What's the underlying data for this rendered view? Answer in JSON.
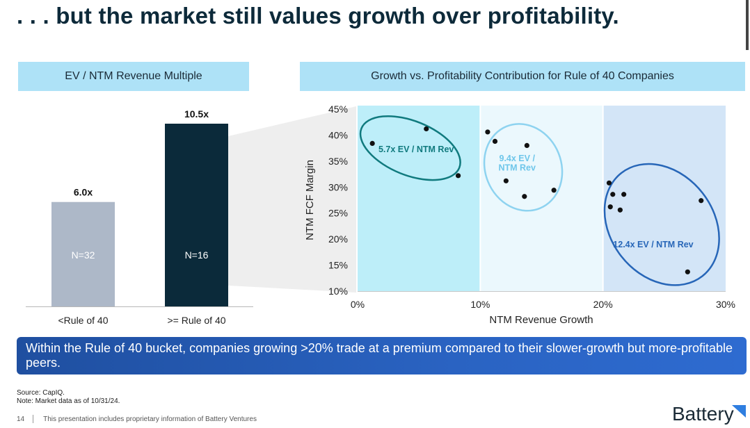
{
  "slide": {
    "title": ". . . but the market still values growth over profitability.",
    "page_number": "14",
    "footer_text": "This presentation includes proprietary information of Battery Ventures",
    "source_line1": "Source: CapIQ.",
    "source_line2": "Note: Market data as of 10/31/24.",
    "logo_text": "Battery",
    "callout": "Within the Rule of 40 bucket, companies growing >20% trade at a premium compared to their slower-growth but more-profitable peers.",
    "colors": {
      "dark_navy": "#0b2a3a",
      "gray_bar": "#adb8c8",
      "header_blue": "#aee2f7",
      "callout_blue": "#2458b0",
      "accent_logo": "#2f7ee0"
    }
  },
  "chart_data": [
    {
      "type": "bar",
      "title": "EV / NTM Revenue Multiple",
      "categories": [
        "<Rule of 40",
        ">= Rule of 40"
      ],
      "values": [
        6.0,
        10.5
      ],
      "value_labels": [
        "6.0x",
        "10.5x"
      ],
      "inner_labels": [
        "N=32",
        "N=16"
      ],
      "bar_colors": [
        "#adb8c8",
        "#0b2a3a"
      ],
      "ylim": [
        0,
        10.5
      ]
    },
    {
      "type": "scatter",
      "title": "Growth vs. Profitability Contribution for Rule of 40 Companies",
      "xlabel": "NTM Revenue Growth",
      "ylabel": "NTM FCF Margin",
      "xlim": [
        0,
        30
      ],
      "ylim": [
        10,
        45
      ],
      "x_ticks": [
        "0%",
        "10%",
        "20%",
        "30%"
      ],
      "y_ticks": [
        "10%",
        "15%",
        "20%",
        "25%",
        "30%",
        "35%",
        "40%",
        "45%"
      ],
      "bands": [
        {
          "x_from": 0,
          "x_to": 10,
          "color": "#bdeef9"
        },
        {
          "x_from": 10,
          "x_to": 20,
          "color": "#ebf8fd"
        },
        {
          "x_from": 20,
          "x_to": 30,
          "color": "#d3e5f7"
        }
      ],
      "points": [
        {
          "x": 1.2,
          "y": 38.4
        },
        {
          "x": 5.6,
          "y": 41.2
        },
        {
          "x": 8.2,
          "y": 32.2
        },
        {
          "x": 10.6,
          "y": 40.6
        },
        {
          "x": 11.2,
          "y": 38.8
        },
        {
          "x": 12.1,
          "y": 31.2
        },
        {
          "x": 13.8,
          "y": 38.0
        },
        {
          "x": 13.6,
          "y": 28.2
        },
        {
          "x": 16.0,
          "y": 29.4
        },
        {
          "x": 20.5,
          "y": 30.8
        },
        {
          "x": 20.8,
          "y": 28.6
        },
        {
          "x": 21.7,
          "y": 28.6
        },
        {
          "x": 20.6,
          "y": 26.2
        },
        {
          "x": 21.4,
          "y": 25.6
        },
        {
          "x": 28.0,
          "y": 27.4
        },
        {
          "x": 26.9,
          "y": 13.7
        }
      ],
      "annotations": [
        {
          "text": "5.7x EV / NTM Rev",
          "x": 1.7,
          "y": 36.7,
          "color": "#107a7e",
          "anchor": "start"
        },
        {
          "text": "9.4x EV /",
          "x": 13.0,
          "y": 35.0,
          "color": "#6ec6ea",
          "anchor": "middle"
        },
        {
          "text": "NTM Rev",
          "x": 13.0,
          "y": 33.2,
          "color": "#6ec6ea",
          "anchor": "middle"
        },
        {
          "text": "12.4x EV / NTM Rev",
          "x": 24.1,
          "y": 18.4,
          "color": "#2766b8",
          "anchor": "middle"
        }
      ],
      "clusters": [
        {
          "cx": 4.3,
          "cy": 37.5,
          "rx": 4.3,
          "ry": 5.2,
          "rot": 22,
          "color": "#107a7e"
        },
        {
          "cx": 13.5,
          "cy": 33.8,
          "rx": 3.1,
          "ry": 8.5,
          "rot": -22,
          "color": "#8ed3f0"
        },
        {
          "cx": 24.8,
          "cy": 22.8,
          "rx": 4.2,
          "ry": 12.6,
          "rot": -38,
          "color": "#2766b8"
        }
      ]
    }
  ]
}
